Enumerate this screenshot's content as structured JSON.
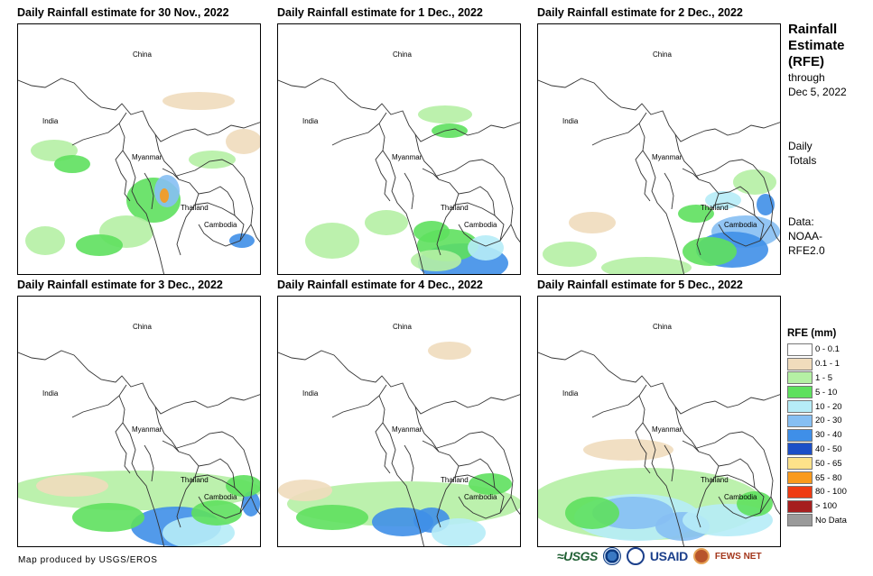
{
  "panels": [
    {
      "title": "Daily Rainfall estimate for 30 Nov., 2022"
    },
    {
      "title": "Daily Rainfall estimate for 1 Dec., 2022"
    },
    {
      "title": "Daily Rainfall estimate for 2 Dec., 2022"
    },
    {
      "title": "Daily Rainfall estimate for 3 Dec., 2022"
    },
    {
      "title": "Daily Rainfall estimate for 4 Dec., 2022"
    },
    {
      "title": "Daily Rainfall estimate for 5 Dec., 2022"
    }
  ],
  "map_labels": {
    "china": "China",
    "india": "India",
    "myanmar": "Myanmar",
    "thailand": "Thailand",
    "cambodia": "Cambodia"
  },
  "sidebar": {
    "title_line1": "Rainfall",
    "title_line2": "Estimate",
    "title_line3": "(RFE)",
    "through": "through",
    "through_date": "Dec 5, 2022",
    "daily_line1": "Daily",
    "daily_line2": "Totals",
    "data_line1": "Data:",
    "data_line2": "NOAA-",
    "data_line3": "RFE2.0"
  },
  "legend": {
    "title": "RFE (mm)",
    "items": [
      {
        "label": "0 - 0.1",
        "color": "#ffffff"
      },
      {
        "label": "0.1 - 1",
        "color": "#f0dcbc"
      },
      {
        "label": "1 - 5",
        "color": "#b5f0a4"
      },
      {
        "label": "5 - 10",
        "color": "#5ee05e"
      },
      {
        "label": "10 - 20",
        "color": "#b6ecf7"
      },
      {
        "label": "20 - 30",
        "color": "#86bff3"
      },
      {
        "label": "30 - 40",
        "color": "#3f8fe8"
      },
      {
        "label": "40 - 50",
        "color": "#1c4fc7"
      },
      {
        "label": "50 - 65",
        "color": "#fde28a"
      },
      {
        "label": "65 - 80",
        "color": "#f99a1c"
      },
      {
        "label": "80 - 100",
        "color": "#ee3b12"
      },
      {
        "label": "> 100",
        "color": "#a61f1f"
      },
      {
        "label": "No Data",
        "color": "#9a9a9a"
      }
    ]
  },
  "credit": "Map produced by USGS/EROS",
  "logos": {
    "usgs": "≈USGS",
    "usaid": "USAID",
    "fews": "FEWS NET"
  }
}
